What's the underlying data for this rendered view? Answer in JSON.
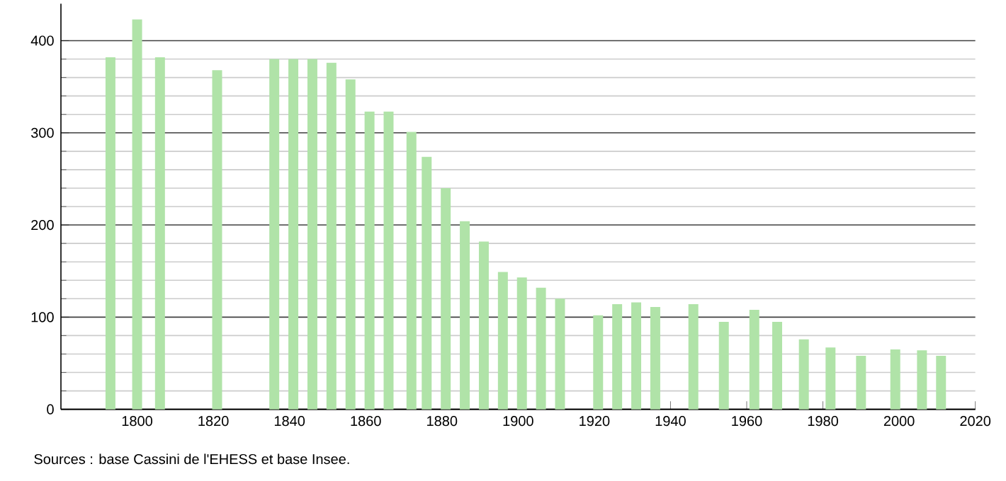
{
  "chart_data": {
    "type": "bar",
    "x": [
      1793,
      1800,
      1806,
      1821,
      1836,
      1841,
      1846,
      1851,
      1856,
      1861,
      1866,
      1872,
      1876,
      1881,
      1886,
      1891,
      1896,
      1901,
      1906,
      1911,
      1921,
      1926,
      1931,
      1936,
      1946,
      1954,
      1962,
      1968,
      1975,
      1982,
      1990,
      1999,
      2006,
      2011
    ],
    "values": [
      382,
      423,
      382,
      368,
      380,
      380,
      380,
      376,
      358,
      323,
      323,
      301,
      274,
      240,
      204,
      182,
      149,
      143,
      132,
      120,
      102,
      114,
      116,
      111,
      114,
      95,
      108,
      95,
      76,
      67,
      58,
      65,
      64,
      58
    ],
    "color": "#b0e3a8",
    "xlim": [
      1780,
      2020
    ],
    "xticks": [
      1800,
      1820,
      1840,
      1860,
      1880,
      1900,
      1920,
      1940,
      1960,
      1980,
      2000,
      2020
    ],
    "ylim": [
      0,
      440
    ],
    "yticks": [
      0,
      100,
      200,
      300,
      400
    ],
    "grid": "y",
    "annotations": [
      "Sources : base Cassini de l'EHESS et base Insee."
    ]
  }
}
